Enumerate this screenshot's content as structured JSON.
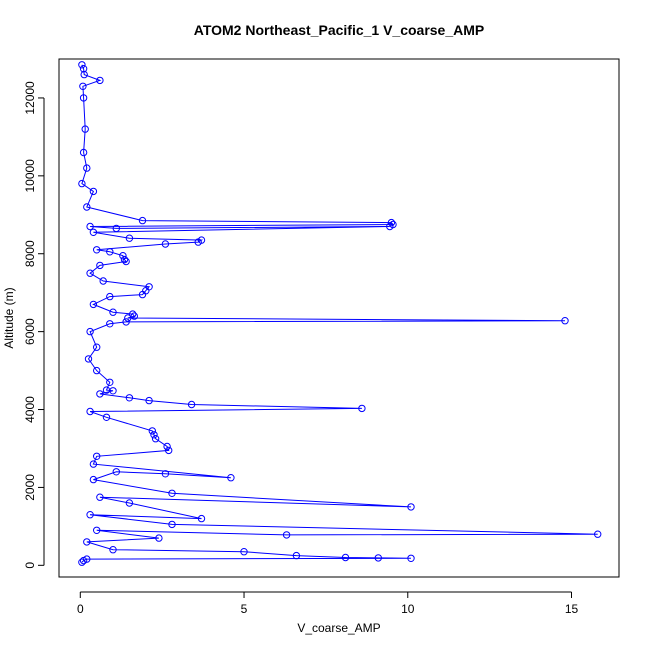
{
  "chart_data": {
    "type": "line",
    "title": "ATOM2 Northeast_Pacific_1 V_coarse_AMP",
    "xlabel": "V_coarse_AMP",
    "ylabel": "Altitude (m)",
    "xlim": [
      0,
      16
    ],
    "ylim": [
      0,
      13000
    ],
    "x_ticks": [
      "0",
      "5",
      "10",
      "15"
    ],
    "y_ticks": [
      "0",
      "2000",
      "4000",
      "6000",
      "8000",
      "10000",
      "12000"
    ],
    "grid": false,
    "legend": "none",
    "line_color": "#0000ff",
    "marker": "open-circle",
    "series": [
      {
        "points": [
          [
            0.05,
            12850
          ],
          [
            0.1,
            12750
          ],
          [
            0.12,
            12600
          ],
          [
            0.6,
            12450
          ],
          [
            0.08,
            12300
          ],
          [
            0.1,
            12000
          ],
          [
            0.15,
            11200
          ],
          [
            0.1,
            10600
          ],
          [
            0.2,
            10200
          ],
          [
            0.05,
            9800
          ],
          [
            0.4,
            9600
          ],
          [
            0.2,
            9200
          ],
          [
            1.9,
            8850
          ],
          [
            9.5,
            8800
          ],
          [
            9.55,
            8750
          ],
          [
            0.3,
            8700
          ],
          [
            1.1,
            8650
          ],
          [
            9.45,
            8700
          ],
          [
            0.4,
            8550
          ],
          [
            1.5,
            8400
          ],
          [
            3.7,
            8350
          ],
          [
            3.6,
            8300
          ],
          [
            2.6,
            8250
          ],
          [
            0.5,
            8100
          ],
          [
            0.9,
            8050
          ],
          [
            1.3,
            7950
          ],
          [
            1.35,
            7850
          ],
          [
            1.4,
            7800
          ],
          [
            0.6,
            7700
          ],
          [
            0.3,
            7500
          ],
          [
            0.7,
            7300
          ],
          [
            2.1,
            7150
          ],
          [
            2.0,
            7050
          ],
          [
            1.9,
            6950
          ],
          [
            0.9,
            6900
          ],
          [
            0.4,
            6700
          ],
          [
            1.0,
            6500
          ],
          [
            1.6,
            6450
          ],
          [
            1.65,
            6400
          ],
          [
            1.45,
            6350
          ],
          [
            14.8,
            6280
          ],
          [
            1.4,
            6250
          ],
          [
            0.9,
            6200
          ],
          [
            0.3,
            6000
          ],
          [
            0.5,
            5600
          ],
          [
            0.25,
            5300
          ],
          [
            0.5,
            5000
          ],
          [
            0.9,
            4700
          ],
          [
            0.8,
            4500
          ],
          [
            1.0,
            4480
          ],
          [
            0.6,
            4400
          ],
          [
            1.5,
            4300
          ],
          [
            2.1,
            4230
          ],
          [
            3.4,
            4130
          ],
          [
            8.6,
            4030
          ],
          [
            0.3,
            3950
          ],
          [
            0.8,
            3800
          ],
          [
            2.2,
            3450
          ],
          [
            2.25,
            3350
          ],
          [
            2.3,
            3250
          ],
          [
            2.65,
            3050
          ],
          [
            2.7,
            2950
          ],
          [
            0.5,
            2800
          ],
          [
            0.4,
            2600
          ],
          [
            4.6,
            2250
          ],
          [
            2.6,
            2350
          ],
          [
            1.1,
            2400
          ],
          [
            0.4,
            2200
          ],
          [
            2.8,
            1850
          ],
          [
            10.1,
            1500
          ],
          [
            0.6,
            1750
          ],
          [
            1.5,
            1600
          ],
          [
            3.7,
            1200
          ],
          [
            0.3,
            1300
          ],
          [
            2.8,
            1050
          ],
          [
            15.8,
            800
          ],
          [
            6.3,
            780
          ],
          [
            0.5,
            900
          ],
          [
            2.4,
            700
          ],
          [
            0.2,
            600
          ],
          [
            1.0,
            400
          ],
          [
            5.0,
            350
          ],
          [
            6.6,
            250
          ],
          [
            8.1,
            200
          ],
          [
            9.1,
            190
          ],
          [
            10.1,
            180
          ],
          [
            0.2,
            160
          ],
          [
            0.1,
            120
          ],
          [
            0.05,
            80
          ]
        ]
      }
    ]
  }
}
